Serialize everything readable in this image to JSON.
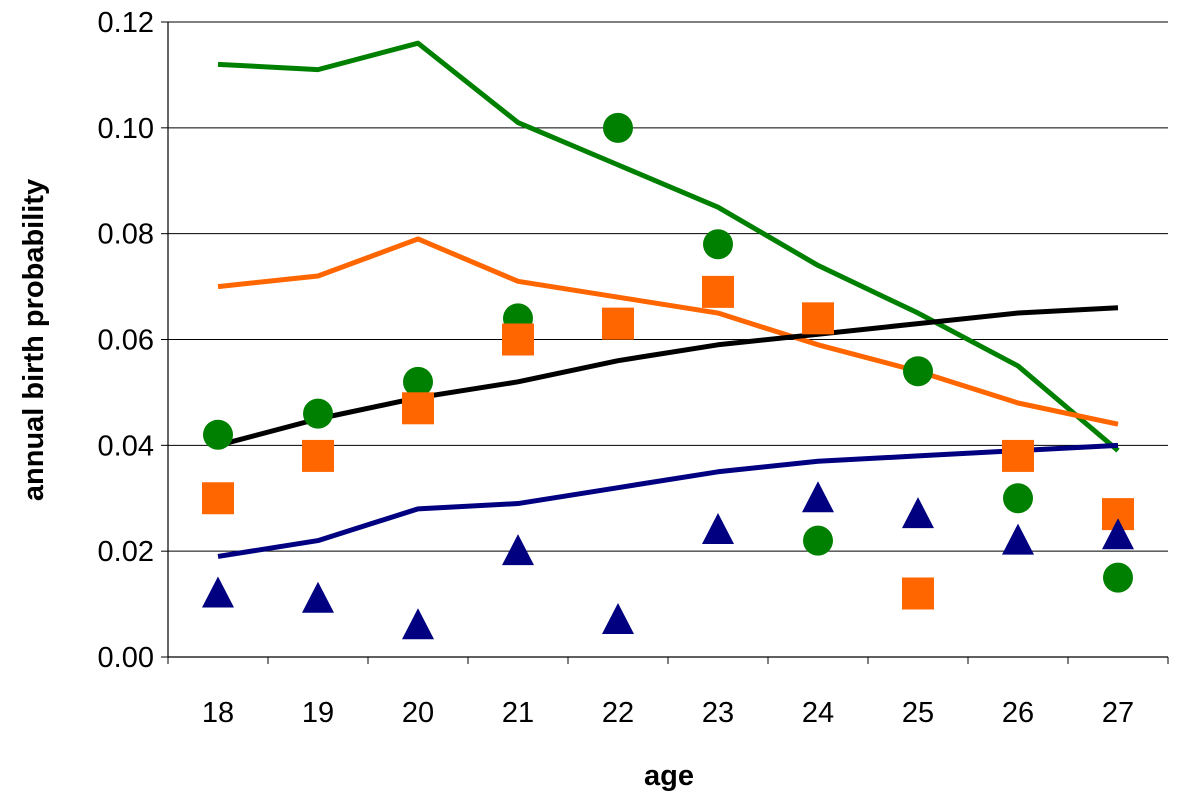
{
  "chart_data": {
    "type": "line",
    "title": "",
    "xlabel": "age",
    "ylabel": "annual birth probability",
    "categories": [
      "18",
      "19",
      "20",
      "21",
      "22",
      "23",
      "24",
      "25",
      "26",
      "27"
    ],
    "ylim": [
      0,
      0.12
    ],
    "y_ticks": [
      "0.00",
      "0.02",
      "0.04",
      "0.06",
      "0.08",
      "0.10",
      "0.12"
    ],
    "grid": "horizontal",
    "legend": "none",
    "series": [
      {
        "kind": "line",
        "color": "#008000",
        "values": [
          0.112,
          0.111,
          0.116,
          0.101,
          0.093,
          0.085,
          0.074,
          0.065,
          0.055,
          0.039
        ]
      },
      {
        "kind": "line",
        "color": "#ff6600",
        "values": [
          0.07,
          0.072,
          0.079,
          0.071,
          0.068,
          0.065,
          0.059,
          0.054,
          0.048,
          0.044
        ]
      },
      {
        "kind": "line",
        "color": "#000000",
        "values": [
          0.04,
          0.045,
          0.049,
          0.052,
          0.056,
          0.059,
          0.061,
          0.063,
          0.065,
          0.066
        ]
      },
      {
        "kind": "line",
        "color": "#000080",
        "values": [
          0.019,
          0.022,
          0.028,
          0.029,
          0.032,
          0.035,
          0.037,
          0.038,
          0.039,
          0.04
        ]
      },
      {
        "kind": "markers",
        "marker": "circle",
        "color": "#008000",
        "values": [
          0.042,
          0.046,
          0.052,
          0.064,
          0.1,
          0.078,
          0.022,
          0.054,
          0.03,
          0.015
        ]
      },
      {
        "kind": "markers",
        "marker": "square",
        "color": "#ff6600",
        "values": [
          0.03,
          0.038,
          0.047,
          0.06,
          0.063,
          0.069,
          0.064,
          0.012,
          0.038,
          0.027
        ]
      },
      {
        "kind": "markers",
        "marker": "triangle",
        "color": "#000080",
        "values": [
          0.012,
          0.011,
          0.006,
          0.02,
          0.007,
          0.024,
          0.03,
          0.027,
          0.022,
          0.023
        ]
      }
    ]
  }
}
